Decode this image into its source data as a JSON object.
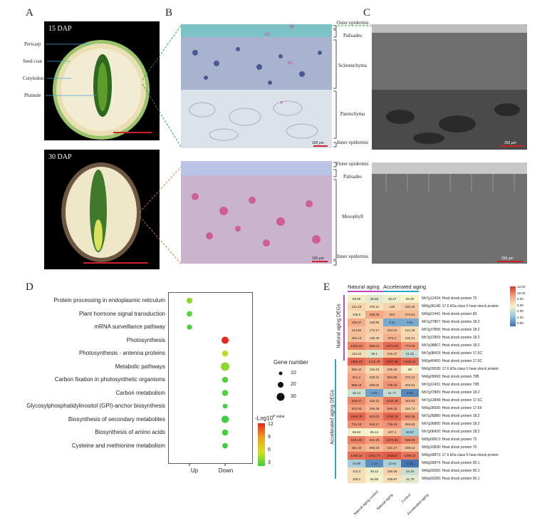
{
  "panels": {
    "A": "A",
    "B": "B",
    "C": "C",
    "D": "D",
    "E": "E"
  },
  "panel_a": {
    "top_stage": "15 DAP",
    "bottom_stage": "30 DAP",
    "labels": [
      "Pericarp",
      "Seed coat",
      "Cotyledon",
      "Plumule"
    ]
  },
  "panel_b": {
    "markers": [
      "OE",
      "PC",
      "SC",
      "P"
    ],
    "scale_top": "100 μm",
    "scale_bottom": "100 μm"
  },
  "panel_c": {
    "scale_top": "250 μm",
    "scale_bottom": "250 μm"
  },
  "anatomy": {
    "top": [
      "Outer epidermis",
      "Palisades",
      "Sclerenchyma",
      "Parenchyma",
      "Inner epidermis"
    ],
    "bottom": [
      "Outer epidermis",
      "Palisades",
      "Mesophyll",
      "Inner epidermis"
    ]
  },
  "colors": {
    "green_leader": "#1a9e3a",
    "orange_leader": "#d9742b",
    "red_scale": "#d0202a",
    "heat_high": "#d43a2c",
    "heat_mid": "#f2e7b0",
    "heat_low": "#3e6fae"
  },
  "chart_data": [
    {
      "type": "scatter",
      "categories": [
        "Protein processing in endoplasmic reticulum",
        "Plant hormone signal transduction",
        "mRNA surveillance pathway",
        "Photosynthesis",
        "Photosynthesis - antenna proteins",
        "Metabolic pathways",
        "Carbon fixation in photosynthetic organisms",
        "Carbon metabolism",
        "Glycosylphosphatidylinositol (GPI)-anchor biosynthesis",
        "Biosynthesis of secondary metabolites",
        "Biosynthesis of amino acids",
        "Cysteine and methionine metabolism"
      ],
      "x": [
        "Up",
        "Down"
      ],
      "points": [
        {
          "term": 0,
          "x": "Up",
          "genes": 12,
          "logp": 4.5
        },
        {
          "term": 1,
          "x": "Up",
          "genes": 10,
          "logp": 3.5
        },
        {
          "term": 2,
          "x": "Up",
          "genes": 8,
          "logp": 3.2
        },
        {
          "term": 3,
          "x": "Down",
          "genes": 22,
          "logp": 12
        },
        {
          "term": 4,
          "x": "Down",
          "genes": 14,
          "logp": 5.5
        },
        {
          "term": 5,
          "x": "Down",
          "genes": 35,
          "logp": 4.5
        },
        {
          "term": 6,
          "x": "Down",
          "genes": 13,
          "logp": 3.5
        },
        {
          "term": 7,
          "x": "Down",
          "genes": 13,
          "logp": 3.3
        },
        {
          "term": 8,
          "x": "Down",
          "genes": 6,
          "logp": 3.0
        },
        {
          "term": 9,
          "x": "Down",
          "genes": 24,
          "logp": 3.0
        },
        {
          "term": 10,
          "x": "Down",
          "genes": 14,
          "logp": 3.0
        },
        {
          "term": 11,
          "x": "Down",
          "genes": 10,
          "logp": 2.8
        }
      ],
      "size_legend_title": "Gene number",
      "size_legend": [
        10,
        20,
        30
      ],
      "color_legend_title": "-Log10",
      "color_legend_sup": "P value",
      "color_ticks": [
        12,
        9,
        6,
        3
      ]
    },
    {
      "type": "heatmap",
      "top_groups": [
        "Natural aging",
        "Accelerated aging"
      ],
      "columns": [
        "Natural aging control",
        "Natural aging",
        "Control",
        "Accelerated aging"
      ],
      "column_labels_visible": [
        "Natural aging control",
        "Natural aging",
        "Control",
        "Accelerated aging"
      ],
      "row_groups": [
        "Natural aging DEGs",
        "Accelerated aging DEGs"
      ],
      "scale_ticks": [
        "12.00",
        "10.00",
        "8.00",
        "6.00",
        "4.00",
        "2.00",
        "0.00"
      ],
      "rows": [
        {
          "gene": "Nh7g12434: Heat shock protein 70",
          "values": [
            58.28,
            38.69,
            49.17,
            62.29
          ]
        },
        {
          "gene": "Nh5g36148: 17.6 kDa class II heat shock protein",
          "values": [
            141.18,
            100.11,
            148.0,
            192.46
          ]
        },
        {
          "gene": "Nh5g01441: Heat shock protein 83",
          "values": [
            108.5,
            458.36,
            304.0,
            274.64
          ]
        },
        {
          "gene": "Nh7g37807: Heat shock protein 18.2",
          "values": [
            436.97,
            168.96,
            3.11,
            3.21
          ]
        },
        {
          "gene": "Nh7g37808: Heat shock protein 18.2",
          "values": [
            244.82,
            172.17,
            254.32,
            122.48
          ]
        },
        {
          "gene": "Nh7g37809: Heat shock protein 18.2",
          "values": [
            250.13,
            138.49,
            373.3,
            132.21
          ]
        },
        {
          "gene": "Nh7g38867: Heat shock protein 18.2",
          "values": [
            1023.23,
            696.01,
            1571.33,
            772.08
          ]
        },
        {
          "gene": "Nh7g08418: Heat shock protein 17.6C",
          "values": [
            115.24,
            35.1,
            215.47,
            21.21
          ]
        },
        {
          "gene": "Nh5g40400: Heat shock protein 17.6C",
          "values": [
            1656.23,
            1142.39,
            2447.98,
            1640.21
          ]
        },
        {
          "gene": "Nh6g26538: 17.6 kDa class II heat shock protein",
          "values": [
            286.44,
            118.43,
            238.46,
            58.0
          ]
        },
        {
          "gene": "Nh6g09668: Heat shock protein 70B",
          "values": [
            511.2,
            225.31,
            503.85,
            275.12
          ]
        },
        {
          "gene": "Nh7g12431: Heat shock protein 70B",
          "values": [
            598.19,
            288.04,
            738.19,
            202.91
          ]
        },
        {
          "gene": "Nh7g37805: Heat shock protein 18.2",
          "values": [
            25.14,
            2.25,
            21.77,
            0.81
          ]
        },
        {
          "gene": "Nh7g13848: Heat shock protein 17.6C",
          "values": [
            938.47,
            426.11,
            1240.48,
            343.83
          ]
        },
        {
          "gene": "Nh5g36590: Heat shock protein 17.6II",
          "values": [
            522.93,
            296.28,
            569.25,
            191.73
          ]
        },
        {
          "gene": "Nh7g36880: Heat shock protein 18.2",
          "values": [
            1658.78,
            810.02,
            1752.78,
            850.36
          ]
        },
        {
          "gene": "Nh7g36800: Heat shock protein 18.2",
          "values": [
            731.19,
            618.17,
            736.18,
            256.63
          ]
        },
        {
          "gene": "Nh7g06420: Heat shock protein 18.2",
          "values": [
            59.63,
            65.14,
            207.2,
            10.57
          ]
        },
        {
          "gene": "Nh5g09913: Heat shock protein 70",
          "values": [
            1061.59,
            631.93,
            1473.98,
            938.08
          ]
        },
        {
          "gene": "Nh5g10830: Heat shock protein 70",
          "values": [
            461.34,
            286.32,
            421.17,
            238.13
          ]
        },
        {
          "gene": "Nh6g39873: 17.6 kDa class II heat shock protein",
          "values": [
            1406.18,
            1761.77,
            2156.3,
            1286.14
          ]
        },
        {
          "gene": "Nh6g39874: Heat shock protein 90.1",
          "values": [
            10.95,
            1.12,
            13.64,
            0.12
          ]
        },
        {
          "gene": "Nh6g03266: Heat shock protein 90.1",
          "values": [
            113.3,
            49.12,
            156.55,
            24.16
          ]
        },
        {
          "gene": "Nh6g03289: Heat shock protein 90.1",
          "values": [
            109.2,
            60.88,
            108.87,
            41.78
          ]
        }
      ]
    }
  ]
}
